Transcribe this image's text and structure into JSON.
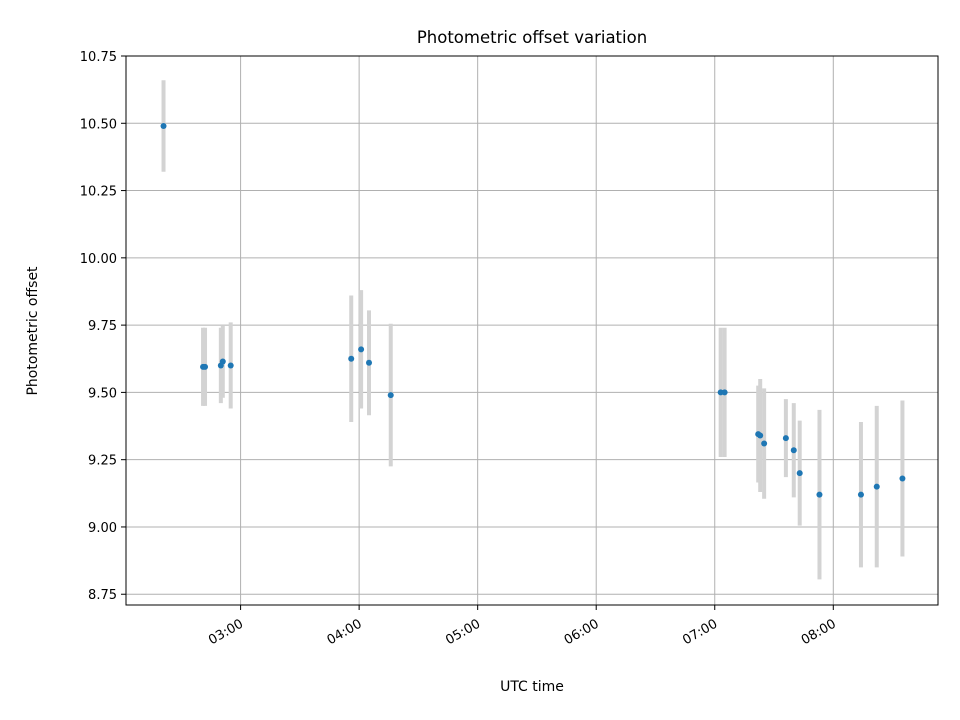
{
  "chart_data": {
    "type": "scatter",
    "title": "Photometric offset variation",
    "xlabel": "UTC time",
    "ylabel": "Photometric offset",
    "x_axis_kind": "time (HH:MM)",
    "xlim": [
      "02:02",
      "08:53"
    ],
    "ylim": [
      8.71,
      10.75
    ],
    "x_ticks": [
      "03:00",
      "04:00",
      "05:00",
      "06:00",
      "07:00",
      "08:00"
    ],
    "y_ticks": [
      "8.75",
      "9.00",
      "9.25",
      "9.50",
      "9.75",
      "10.00",
      "10.25",
      "10.50",
      "10.75"
    ],
    "grid": true,
    "marker_color": "#1f77b4",
    "errorbar_color": "#d3d3d3",
    "points": [
      {
        "time": "02:21",
        "value": 10.49,
        "err": 0.17
      },
      {
        "time": "02:41",
        "value": 9.595,
        "err": 0.145
      },
      {
        "time": "02:42",
        "value": 9.595,
        "err": 0.145
      },
      {
        "time": "02:50",
        "value": 9.6,
        "err": 0.14
      },
      {
        "time": "02:51",
        "value": 9.615,
        "err": 0.135
      },
      {
        "time": "02:55",
        "value": 9.6,
        "err": 0.16
      },
      {
        "time": "03:56",
        "value": 9.625,
        "err": 0.235
      },
      {
        "time": "04:01",
        "value": 9.66,
        "err": 0.22
      },
      {
        "time": "04:05",
        "value": 9.61,
        "err": 0.195
      },
      {
        "time": "04:16",
        "value": 9.49,
        "err": 0.265
      },
      {
        "time": "07:03",
        "value": 9.5,
        "err": 0.24
      },
      {
        "time": "07:05",
        "value": 9.5,
        "err": 0.24
      },
      {
        "time": "07:22",
        "value": 9.345,
        "err": 0.18
      },
      {
        "time": "07:23",
        "value": 9.34,
        "err": 0.21
      },
      {
        "time": "07:25",
        "value": 9.31,
        "err": 0.205
      },
      {
        "time": "07:36",
        "value": 9.33,
        "err": 0.145
      },
      {
        "time": "07:40",
        "value": 9.285,
        "err": 0.175
      },
      {
        "time": "07:43",
        "value": 9.2,
        "err": 0.195
      },
      {
        "time": "07:53",
        "value": 9.12,
        "err": 0.315
      },
      {
        "time": "08:14",
        "value": 9.12,
        "err": 0.27
      },
      {
        "time": "08:22",
        "value": 9.15,
        "err": 0.3
      },
      {
        "time": "08:35",
        "value": 9.18,
        "err": 0.29
      }
    ]
  }
}
